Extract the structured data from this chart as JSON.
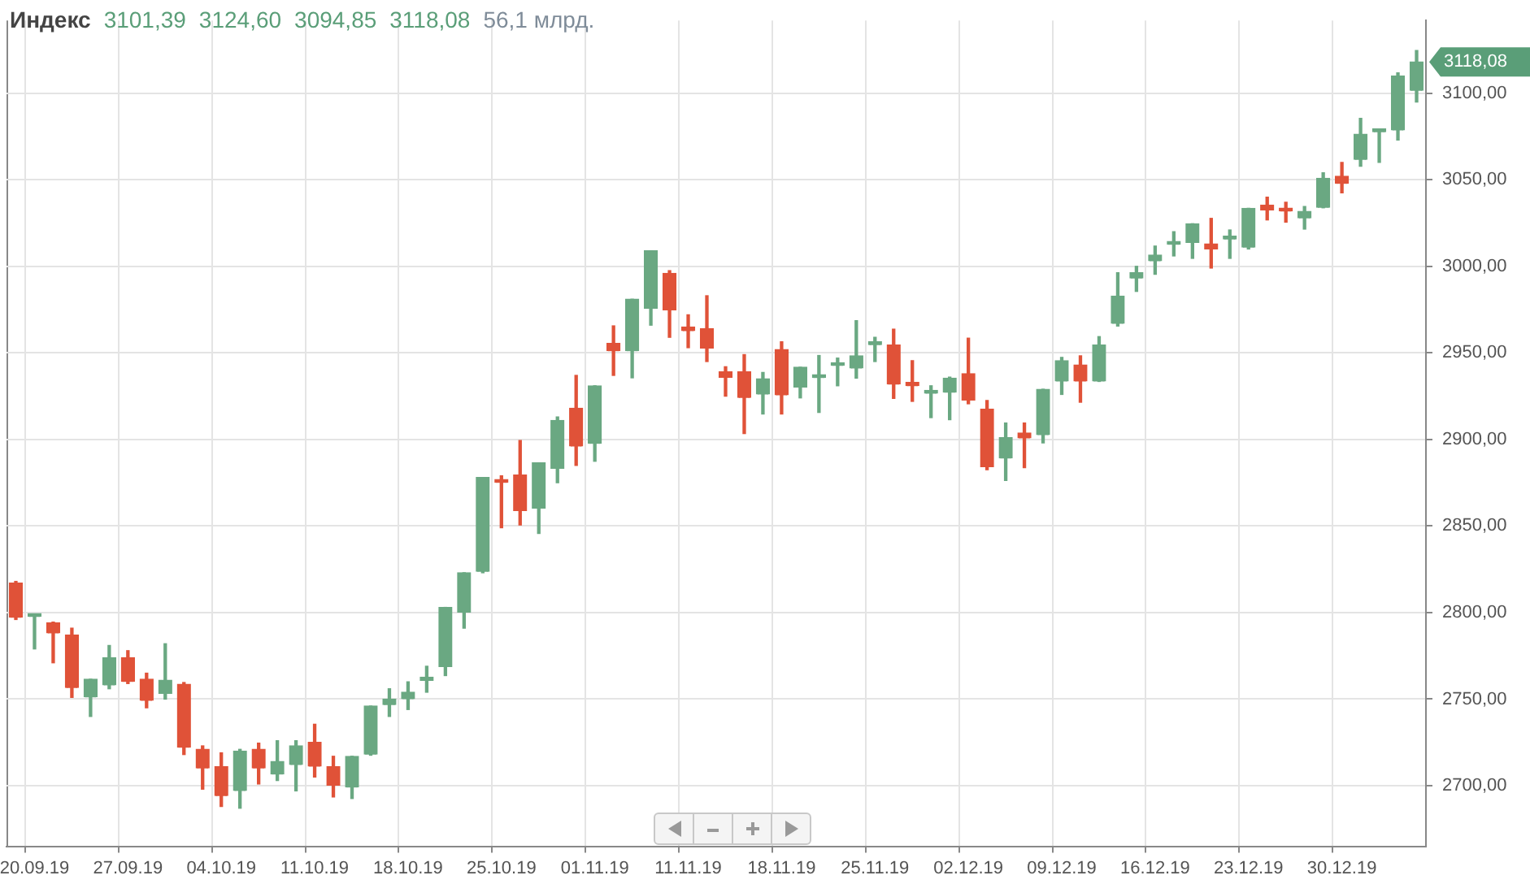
{
  "chart_data": {
    "type": "candlestick",
    "title": "Индекс",
    "annotations": [
      "3101,39",
      "3124,60",
      "3094,85",
      "3118,08",
      "56,1 млрд.",
      "3118,08"
    ],
    "categories": [
      null,
      "20.09.19",
      null,
      null,
      null,
      null,
      "27.09.19",
      null,
      null,
      null,
      null,
      "04.10.19",
      null,
      null,
      null,
      null,
      "11.10.19",
      null,
      null,
      null,
      null,
      "18.10.19",
      null,
      null,
      null,
      null,
      "25.10.19",
      null,
      null,
      null,
      null,
      "01.11.19",
      null,
      null,
      null,
      null,
      "11.11.19",
      null,
      null,
      null,
      null,
      "18.11.19",
      null,
      null,
      null,
      null,
      "25.11.19",
      null,
      null,
      null,
      null,
      "02.12.19",
      null,
      null,
      null,
      null,
      "09.12.19",
      null,
      null,
      null,
      null,
      "16.12.19",
      null,
      null,
      null,
      null,
      "23.12.19",
      null,
      null,
      null,
      null,
      "30.12.19",
      null,
      null,
      null,
      null
    ],
    "ohlc": [
      [
        2817,
        2818,
        2796,
        2797
      ],
      [
        2797.5,
        2798,
        2779,
        2798
      ],
      [
        2794,
        2794.5,
        2771,
        2788
      ],
      [
        2787,
        2791,
        2751,
        2756.5
      ],
      [
        2751,
        2761.5,
        2740,
        2761.5
      ],
      [
        2758,
        2781,
        2756,
        2774
      ],
      [
        2774,
        2778,
        2759,
        2760
      ],
      [
        2761.5,
        2765,
        2745,
        2749
      ],
      [
        2753,
        2782,
        2750,
        2761
      ],
      [
        2758.6,
        2759.6,
        2718,
        2722
      ],
      [
        2721,
        2723,
        2698,
        2710
      ],
      [
        2711,
        2719,
        2688,
        2694
      ],
      [
        2697,
        2721,
        2687,
        2720
      ],
      [
        2721,
        2724.6,
        2701,
        2710
      ],
      [
        2706.5,
        2726,
        2703,
        2714
      ],
      [
        2712,
        2726,
        2697,
        2723
      ],
      [
        2725,
        2735.5,
        2705,
        2711
      ],
      [
        2711,
        2717,
        2693.5,
        2700
      ],
      [
        2699,
        2717,
        2692.6,
        2717
      ],
      [
        2718,
        2746,
        2717.6,
        2746
      ],
      [
        2746.6,
        2756,
        2740,
        2750
      ],
      [
        2750,
        2760,
        2744,
        2754
      ],
      [
        2760.5,
        2769,
        2754,
        2762.7
      ],
      [
        2768.5,
        2803,
        2763.6,
        2803
      ],
      [
        2800,
        2823,
        2791,
        2823
      ],
      [
        2823.6,
        2878,
        2823,
        2878
      ],
      [
        2876,
        2879,
        2849,
        2875
      ],
      [
        2879.4,
        2899.4,
        2850.6,
        2858.6
      ],
      [
        2860,
        2886.5,
        2845.7,
        2886.5
      ],
      [
        2883,
        2913,
        2875,
        2911
      ],
      [
        2918,
        2937,
        2885,
        2896
      ],
      [
        2897.5,
        2931,
        2887.4,
        2931
      ],
      [
        2955.5,
        2965.6,
        2937,
        2951
      ],
      [
        2951,
        2981,
        2935.6,
        2981
      ],
      [
        2975.5,
        3009,
        2966,
        3009
      ],
      [
        2996,
        2997.5,
        2959,
        2974.5
      ],
      [
        2965,
        2972,
        2953,
        2962.6
      ],
      [
        2964,
        2983,
        2945,
        2952.5
      ],
      [
        2939,
        2942,
        2925,
        2935.6
      ],
      [
        2939,
        2949,
        2903.4,
        2924
      ],
      [
        2926,
        2938.7,
        2914.7,
        2935
      ],
      [
        2952,
        2956.4,
        2914.7,
        2925.5
      ],
      [
        2930,
        2941.7,
        2924,
        2941.7
      ],
      [
        2935.5,
        2948.5,
        2915.6,
        2936
      ],
      [
        2942.5,
        2947,
        2931,
        2943
      ],
      [
        2941,
        2968.6,
        2935.4,
        2948.3
      ],
      [
        2954.5,
        2959,
        2945,
        2955
      ],
      [
        2954.5,
        2963.7,
        2923.7,
        2931.7
      ],
      [
        2933,
        2945.5,
        2922,
        2930.8
      ],
      [
        2926.5,
        2931,
        2912.6,
        2927
      ],
      [
        2927,
        2936,
        2911.4,
        2935.4
      ],
      [
        2938,
        2958.5,
        2920.6,
        2922.5
      ],
      [
        2917.5,
        2922.5,
        2882.5,
        2884
      ],
      [
        2889,
        2909.5,
        2876.3,
        2901
      ],
      [
        2903.7,
        2909.5,
        2883.7,
        2900.6
      ],
      [
        2902.5,
        2929,
        2898,
        2929
      ],
      [
        2933.5,
        2947.4,
        2926,
        2945.5
      ],
      [
        2943,
        2948.3,
        2921.5,
        2933.5
      ],
      [
        2933.5,
        2959.4,
        2933.5,
        2954.5
      ],
      [
        2966.8,
        2996.3,
        2965.5,
        2982.8
      ],
      [
        2993,
        3000,
        2985.5,
        2996.3
      ],
      [
        3003,
        3011.7,
        2995.4,
        3006.5
      ],
      [
        3012.5,
        3020,
        3006,
        3013
      ],
      [
        3013.5,
        3024.6,
        3004.6,
        3024.6
      ],
      [
        3013,
        3027.7,
        2999,
        3009.8
      ],
      [
        3015.5,
        3021,
        3004.6,
        3016
      ],
      [
        3010.8,
        3033.5,
        3010,
        3033.5
      ],
      [
        3035.4,
        3040,
        3026.8,
        3032.3
      ],
      [
        3032.3,
        3037,
        3025.5,
        3031.7
      ],
      [
        3027.7,
        3034.5,
        3021.5,
        3031.7
      ],
      [
        3033.8,
        3054,
        3033.8,
        3050.8
      ],
      [
        3052,
        3060,
        3042.5,
        3047.7
      ],
      [
        3061.5,
        3085.5,
        3057.8,
        3076.3
      ],
      [
        3077.5,
        3079,
        3060,
        3079
      ],
      [
        3078.5,
        3111.7,
        3073,
        3110
      ],
      [
        3101.39,
        3124.6,
        3094.85,
        3118.08
      ]
    ],
    "colors": [
      "#e05238",
      "#6aa882",
      "#e05238",
      "#e05238",
      "#6aa882",
      "#6aa882",
      "#e05238",
      "#e05238",
      "#6aa882",
      "#e05238",
      "#e05238",
      "#e05238",
      "#6aa882",
      "#e05238",
      "#6aa882",
      "#6aa882",
      "#e05238",
      "#e05238",
      "#6aa882",
      "#6aa882",
      "#6aa882",
      "#6aa882",
      "#6aa882",
      "#6aa882",
      "#6aa882",
      "#6aa882",
      "#e05238",
      "#e05238",
      "#6aa882",
      "#6aa882",
      "#e05238",
      "#6aa882",
      "#e05238",
      "#6aa882",
      "#6aa882",
      "#e05238",
      "#e05238",
      "#e05238",
      "#e05238",
      "#e05238",
      "#6aa882",
      "#e05238",
      "#6aa882",
      "#6aa882",
      "#6aa882",
      "#6aa882",
      "#6aa882",
      "#e05238",
      "#e05238",
      "#6aa882",
      "#6aa882",
      "#e05238",
      "#e05238",
      "#6aa882",
      "#e05238",
      "#6aa882",
      "#6aa882",
      "#e05238",
      "#6aa882",
      "#6aa882",
      "#6aa882",
      "#6aa882",
      "#6aa882",
      "#6aa882",
      "#e05238",
      "#6aa882",
      "#6aa882",
      "#e05238",
      "#e05238",
      "#6aa882",
      "#6aa882",
      "#e05238",
      "#6aa882",
      "#6aa882",
      "#6aa882",
      "#6aa882"
    ],
    "ylim": [
      2665,
      3142
    ],
    "yticks": [
      {
        "value": 2700,
        "label": "2700,00"
      },
      {
        "value": 2750,
        "label": "2750,00"
      },
      {
        "value": 2800,
        "label": "2800,00"
      },
      {
        "value": 2850,
        "label": "2850,00"
      },
      {
        "value": 2900,
        "label": "2900,00"
      },
      {
        "value": 2950,
        "label": "2950,00"
      },
      {
        "value": 3000,
        "label": "3000,00"
      },
      {
        "value": 3050,
        "label": "3050,00"
      },
      {
        "value": 3100,
        "label": "3100,00"
      }
    ],
    "grid": true,
    "legend": false
  }
}
